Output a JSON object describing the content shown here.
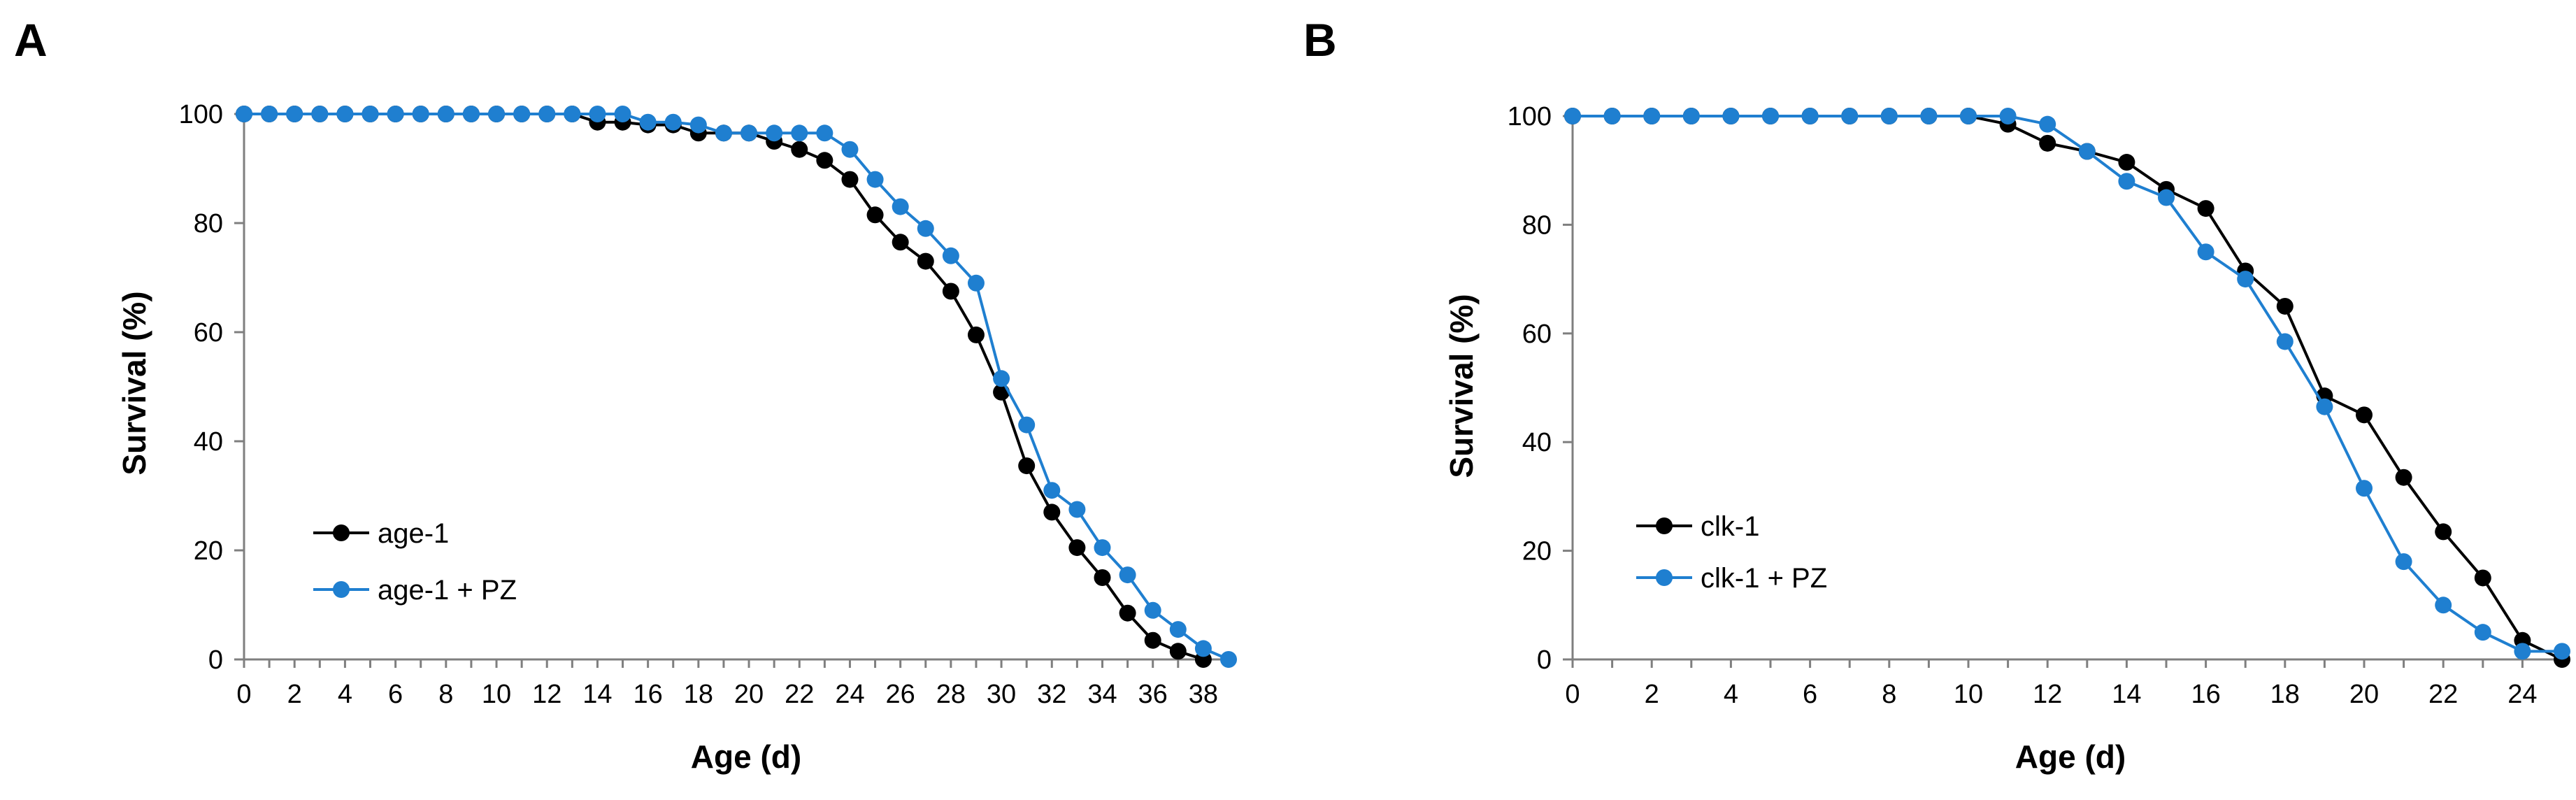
{
  "colors": {
    "series_black": "#000000",
    "series_blue": "#1f7fd0",
    "axis": "#7f7f7f"
  },
  "chart_data": [
    {
      "type": "line",
      "panel_label": "A",
      "xlabel": "Age (d)",
      "ylabel": "Survival (%)",
      "xlim": [
        0,
        39
      ],
      "ylim": [
        0,
        100
      ],
      "x_ticks": [
        0,
        2,
        4,
        6,
        8,
        10,
        12,
        14,
        16,
        18,
        20,
        22,
        24,
        26,
        28,
        30,
        32,
        34,
        36,
        38
      ],
      "y_ticks": [
        0,
        20,
        40,
        60,
        80,
        100
      ],
      "grid": false,
      "legend_position": "lower-left",
      "series": [
        {
          "name": "age-1",
          "color": "#000000",
          "x": [
            0,
            1,
            2,
            3,
            4,
            5,
            6,
            7,
            8,
            9,
            10,
            11,
            12,
            13,
            14,
            15,
            16,
            17,
            18,
            19,
            20,
            21,
            22,
            23,
            24,
            25,
            26,
            27,
            28,
            29,
            30,
            31,
            32,
            33,
            34,
            35,
            36,
            37,
            38
          ],
          "y": [
            100,
            100,
            100,
            100,
            100,
            100,
            100,
            100,
            100,
            100,
            100,
            100,
            100,
            100,
            98.5,
            98.5,
            98,
            98,
            96.5,
            96.5,
            96.5,
            95,
            93.5,
            91.5,
            88,
            81.5,
            76.5,
            73,
            67.5,
            59.5,
            49,
            35.5,
            27,
            20.5,
            15,
            8.5,
            3.5,
            1.5,
            0
          ]
        },
        {
          "name": "age-1 + PZ",
          "color": "#1f7fd0",
          "x": [
            0,
            1,
            2,
            3,
            4,
            5,
            6,
            7,
            8,
            9,
            10,
            11,
            12,
            13,
            14,
            15,
            16,
            17,
            18,
            19,
            20,
            21,
            22,
            23,
            24,
            25,
            26,
            27,
            28,
            29,
            30,
            31,
            32,
            33,
            34,
            35,
            36,
            37,
            38,
            39
          ],
          "y": [
            100,
            100,
            100,
            100,
            100,
            100,
            100,
            100,
            100,
            100,
            100,
            100,
            100,
            100,
            100,
            100,
            98.5,
            98.5,
            98,
            96.5,
            96.5,
            96.5,
            96.5,
            96.5,
            93.5,
            88,
            83,
            79,
            74,
            69,
            51.5,
            43,
            31,
            27.5,
            20.5,
            15.5,
            9,
            5.5,
            2,
            0
          ]
        }
      ]
    },
    {
      "type": "line",
      "panel_label": "B",
      "xlabel": "Age (d)",
      "ylabel": "Survival (%)",
      "xlim": [
        0,
        25
      ],
      "ylim": [
        0,
        100
      ],
      "x_ticks": [
        0,
        2,
        4,
        6,
        8,
        10,
        12,
        14,
        16,
        18,
        20,
        22,
        24
      ],
      "y_ticks": [
        0,
        20,
        40,
        60,
        80,
        100
      ],
      "grid": false,
      "legend_position": "lower-left",
      "series": [
        {
          "name": "clk-1",
          "color": "#000000",
          "x": [
            0,
            1,
            2,
            3,
            4,
            5,
            6,
            7,
            8,
            9,
            10,
            11,
            12,
            13,
            14,
            15,
            16,
            17,
            18,
            19,
            20,
            21,
            22,
            23,
            24,
            25
          ],
          "y": [
            100,
            100,
            100,
            100,
            100,
            100,
            100,
            100,
            100,
            100,
            100,
            98.5,
            95,
            93.5,
            91.5,
            86.5,
            83,
            71.5,
            65,
            48.5,
            45,
            33.5,
            23.5,
            15,
            3.5,
            0
          ]
        },
        {
          "name": "clk-1 + PZ",
          "color": "#1f7fd0",
          "x": [
            0,
            1,
            2,
            3,
            4,
            5,
            6,
            7,
            8,
            9,
            10,
            11,
            12,
            13,
            14,
            15,
            16,
            17,
            18,
            19,
            20,
            21,
            22,
            23,
            24,
            25
          ],
          "y": [
            100,
            100,
            100,
            100,
            100,
            100,
            100,
            100,
            100,
            100,
            100,
            100,
            98.5,
            93.5,
            88,
            85,
            75,
            70,
            58.5,
            46.5,
            31.5,
            18,
            10,
            5,
            1.5,
            1.5
          ]
        }
      ]
    }
  ]
}
